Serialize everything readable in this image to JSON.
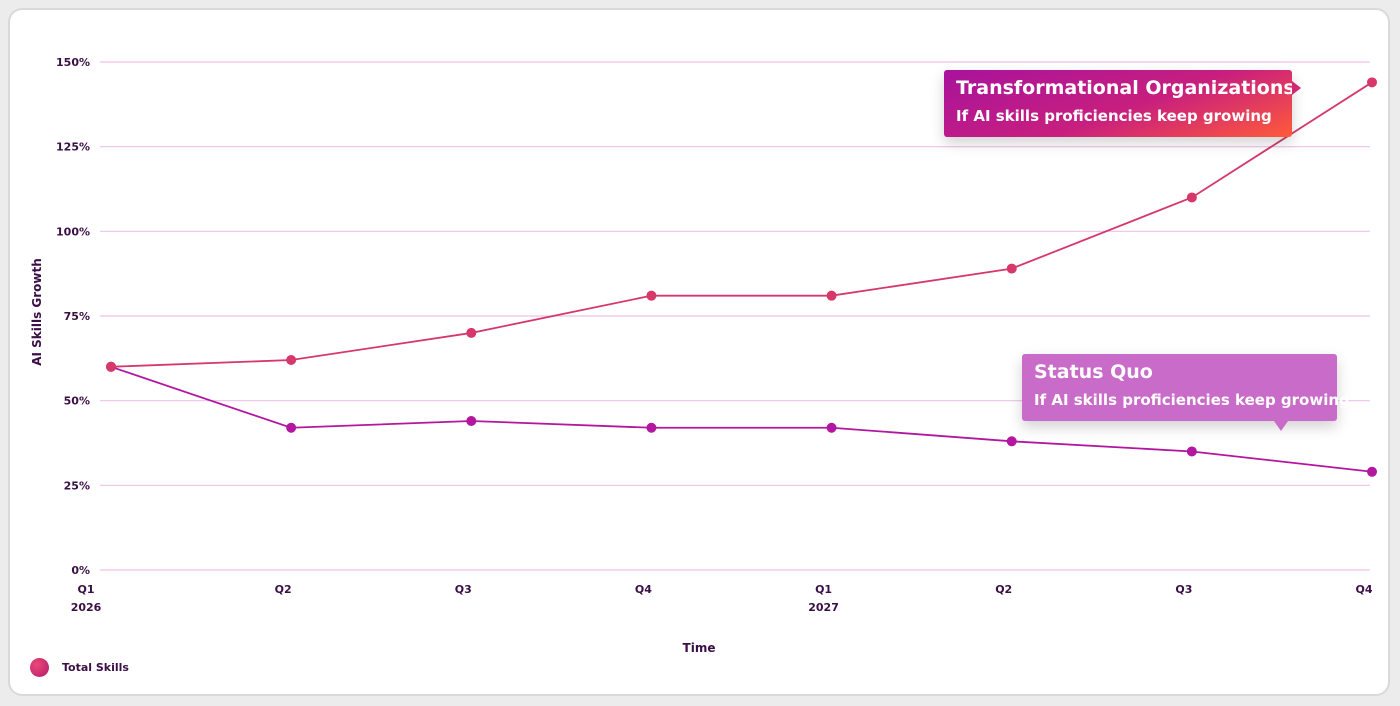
{
  "chart_data": {
    "type": "line",
    "xlabel": "Time",
    "ylabel": "AI Skills Growth",
    "ylim": [
      0,
      150
    ],
    "y_ticks": [
      "0%",
      "25%",
      "50%",
      "75%",
      "100%",
      "125%",
      "150%"
    ],
    "x_labels": [
      {
        "quarter": "Q1",
        "year": "2026"
      },
      {
        "quarter": "Q2",
        "year": ""
      },
      {
        "quarter": "Q3",
        "year": ""
      },
      {
        "quarter": "Q4",
        "year": ""
      },
      {
        "quarter": "Q1",
        "year": "2027"
      },
      {
        "quarter": "Q2",
        "year": ""
      },
      {
        "quarter": "Q3",
        "year": ""
      },
      {
        "quarter": "Q4",
        "year": ""
      }
    ],
    "categories": [
      "Q1 2026",
      "Q2 2026",
      "Q3 2026",
      "Q4 2026",
      "Q1 2027",
      "Q2 2027",
      "Q3 2027",
      "Q4 2027"
    ],
    "grid": true,
    "legend_position": "bottom-left",
    "legend": [
      "Total Skills"
    ],
    "series": [
      {
        "values": [
          60,
          62,
          70,
          81,
          81,
          89,
          110,
          144
        ],
        "color": "#d6386b"
      },
      {
        "values": [
          60,
          42,
          44,
          42,
          42,
          38,
          35,
          29
        ],
        "color": "#b3179f"
      }
    ],
    "annotations": [
      {
        "title": "Transformational Organizations",
        "subtitle": "If AI skills proficiencies keep growing"
      },
      {
        "title": "Status Quo",
        "subtitle": "If AI skills proficiencies keep growing"
      }
    ],
    "colors": {
      "grid": "#ecc3ea",
      "text": "#3a0f45"
    }
  }
}
